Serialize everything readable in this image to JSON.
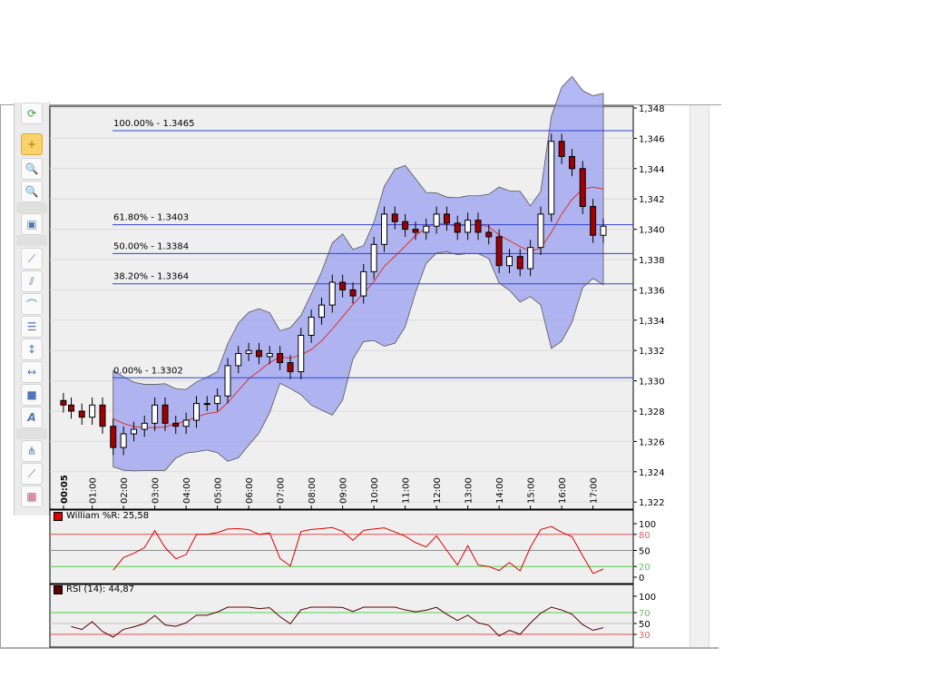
{
  "toolbar": {
    "buttons": [
      "refresh",
      "crosshair",
      "zoom-in",
      "zoom-out",
      "chart-properties",
      "line",
      "channel",
      "arc",
      "fibonacci",
      "vertical-line",
      "horizontal-line",
      "rectangle",
      "text",
      "pitchfork",
      "ray",
      "indicators"
    ],
    "active": "crosshair"
  },
  "indicators": {
    "williams_label": "William %R: 25,58",
    "rsi_label": "RSI (14): 44,87",
    "williams_color": "#e00000",
    "rsi_color": "#5a0000"
  },
  "chart_data": {
    "type": "candlestick",
    "title": "",
    "price_ticks": [
      "1,348",
      "1,346",
      "1,344",
      "1,342",
      "1,340",
      "1,338",
      "1,336",
      "1,334",
      "1,332",
      "1,330",
      "1,328",
      "1,326",
      "1,324",
      "1,322"
    ],
    "ylim": [
      1.322,
      1.348
    ],
    "time_ticks": [
      "00:05",
      "01:00",
      "02:00",
      "03:00",
      "04:00",
      "05:00",
      "06:00",
      "07:00",
      "08:00",
      "09:00",
      "10:00",
      "11:00",
      "12:00",
      "13:00",
      "14:00",
      "15:00",
      "16:00",
      "17:00"
    ],
    "xlim_hours": [
      0.08,
      17.5
    ],
    "closes_hours": [
      0.08,
      0.33,
      0.67,
      1.0,
      1.33,
      1.67,
      2.0,
      2.33,
      2.67,
      3.0,
      3.33,
      3.67,
      4.0,
      4.33,
      4.67,
      5.0,
      5.33,
      5.67,
      6.0,
      6.33,
      6.67,
      7.0,
      7.33,
      7.67,
      8.0,
      8.33,
      8.67,
      9.0,
      9.33,
      9.67,
      10.0,
      10.33,
      10.67,
      11.0,
      11.33,
      11.67,
      12.0,
      12.33,
      12.67,
      13.0,
      13.33,
      13.67,
      14.0,
      14.33,
      14.67,
      15.0,
      15.33,
      15.67,
      16.0,
      16.33,
      16.67,
      17.0,
      17.33
    ],
    "closes": [
      1.3284,
      1.328,
      1.3276,
      1.3284,
      1.327,
      1.3256,
      1.3265,
      1.3268,
      1.3272,
      1.3284,
      1.3272,
      1.327,
      1.3274,
      1.3285,
      1.3285,
      1.329,
      1.331,
      1.3318,
      1.332,
      1.3316,
      1.3318,
      1.3312,
      1.3306,
      1.333,
      1.3342,
      1.335,
      1.3365,
      1.336,
      1.3356,
      1.3372,
      1.339,
      1.341,
      1.3405,
      1.34,
      1.3398,
      1.3402,
      1.341,
      1.3404,
      1.3398,
      1.3406,
      1.3398,
      1.3395,
      1.3376,
      1.3382,
      1.3374,
      1.3388,
      1.341,
      1.3458,
      1.3448,
      1.344,
      1.3415,
      1.3396,
      1.3402
    ],
    "fibonacci": [
      {
        "label": "100.00% - 1.3465",
        "price": 1.3465
      },
      {
        "label": "61.80% - 1.3403",
        "price": 1.3403
      },
      {
        "label": "50.00% - 1.3384",
        "price": 1.3384
      },
      {
        "label": "38.20% - 1.3364",
        "price": 1.3364
      },
      {
        "label": "0.00% - 1.3302",
        "price": 1.3302
      }
    ],
    "williams_ticks": [
      "100",
      "80",
      "50",
      "20",
      "0"
    ],
    "williams_levels": {
      "upper": 80,
      "lower": 20
    },
    "rsi_ticks": [
      "100",
      "70",
      "50",
      "30"
    ],
    "rsi_levels": {
      "upper": 70,
      "lower": 30
    },
    "colors": {
      "band": "#9aa0f0",
      "ma": "#e03030",
      "fib": "#3040d0",
      "up": "#ffffff",
      "down": "#a00000"
    }
  }
}
